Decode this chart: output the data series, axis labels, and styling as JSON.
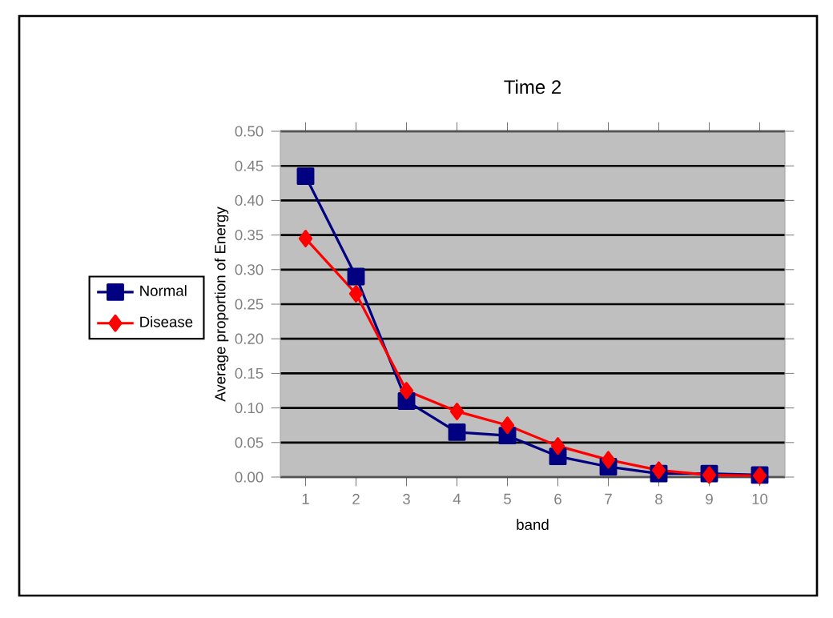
{
  "chart_data": {
    "type": "line",
    "title": "Time 2",
    "xlabel": "band",
    "ylabel": "Average proportion of Energy",
    "categories": [
      "1",
      "2",
      "3",
      "4",
      "5",
      "6",
      "7",
      "8",
      "9",
      "10"
    ],
    "series": [
      {
        "name": "Normal",
        "color": "#000080",
        "marker": "square",
        "values": [
          0.435,
          0.29,
          0.11,
          0.065,
          0.06,
          0.03,
          0.015,
          0.005,
          0.005,
          0.003
        ]
      },
      {
        "name": "Disease",
        "color": "#ff0000",
        "marker": "diamond",
        "values": [
          0.345,
          0.265,
          0.125,
          0.095,
          0.075,
          0.045,
          0.025,
          0.01,
          0.003,
          0.002
        ]
      }
    ],
    "ylim": [
      0,
      0.5
    ],
    "yticks": [
      {
        "value": 0,
        "label": "0.00"
      },
      {
        "value": 0.05,
        "label": "0.05"
      },
      {
        "value": 0.1,
        "label": "0.10"
      },
      {
        "value": 0.15,
        "label": "0.15"
      },
      {
        "value": 0.2,
        "label": "0.20"
      },
      {
        "value": 0.25,
        "label": "0.25"
      },
      {
        "value": 0.3,
        "label": "0.30"
      },
      {
        "value": 0.35,
        "label": "0.35"
      },
      {
        "value": 0.4,
        "label": "0.40"
      },
      {
        "value": 0.45,
        "label": "0.45"
      },
      {
        "value": 0.5,
        "label": "0.50"
      }
    ],
    "grid": "y",
    "legend": "left",
    "line_style": "solid"
  }
}
